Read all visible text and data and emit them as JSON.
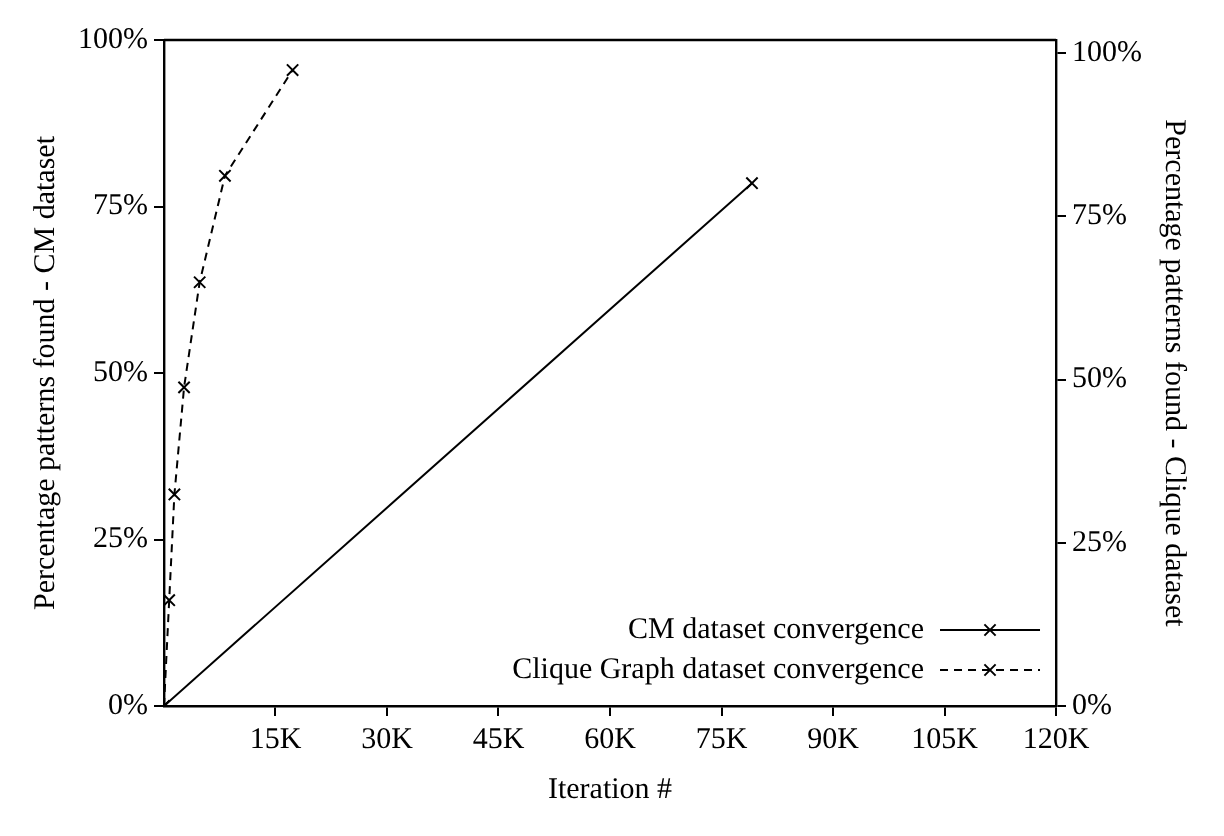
{
  "chart_data": {
    "type": "line",
    "xlabel": "Iteration #",
    "ylabel": "Percentage patterns found - CM dataset",
    "y2label": "Percentage patterns found - Clique dataset",
    "xlim": [
      0,
      120000
    ],
    "xticks": [
      {
        "value": 15000,
        "label": "15K"
      },
      {
        "value": 30000,
        "label": "30K"
      },
      {
        "value": 45000,
        "label": "45K"
      },
      {
        "value": 60000,
        "label": "60K"
      },
      {
        "value": 75000,
        "label": "75K"
      },
      {
        "value": 90000,
        "label": "90K"
      },
      {
        "value": 105000,
        "label": "105K"
      },
      {
        "value": 120000,
        "label": "120K"
      }
    ],
    "ylim": [
      0,
      100
    ],
    "yticks": [
      {
        "value": 0,
        "label": "0%"
      },
      {
        "value": 25,
        "label": "25%"
      },
      {
        "value": 50,
        "label": "50%"
      },
      {
        "value": 75,
        "label": "75%"
      },
      {
        "value": 100,
        "label": "100%"
      }
    ],
    "y2lim": [
      0,
      102
    ],
    "y2ticks": [
      {
        "value": 0,
        "label": "0%"
      },
      {
        "value": 25,
        "label": "25%"
      },
      {
        "value": 50,
        "label": "50%"
      },
      {
        "value": 75,
        "label": "75%"
      },
      {
        "value": 100,
        "label": "100%"
      }
    ],
    "grid": false,
    "legend": "bottom right",
    "series": [
      {
        "name": "CM dataset convergence",
        "color": "#000000",
        "marker": "cross",
        "line_style": "solid",
        "x": [
          0,
          79100
        ],
        "values": [
          0,
          78.5
        ]
      },
      {
        "name": "Clique Graph dataset convergence",
        "color": "#000000",
        "marker": "cross",
        "line_style": "dashed",
        "axis": "y2",
        "x": [
          0,
          700,
          1400,
          2700,
          4800,
          8200,
          17300
        ],
        "values": [
          0,
          16.2,
          32.4,
          48.8,
          64.9,
          81.2,
          97.4
        ]
      }
    ]
  }
}
